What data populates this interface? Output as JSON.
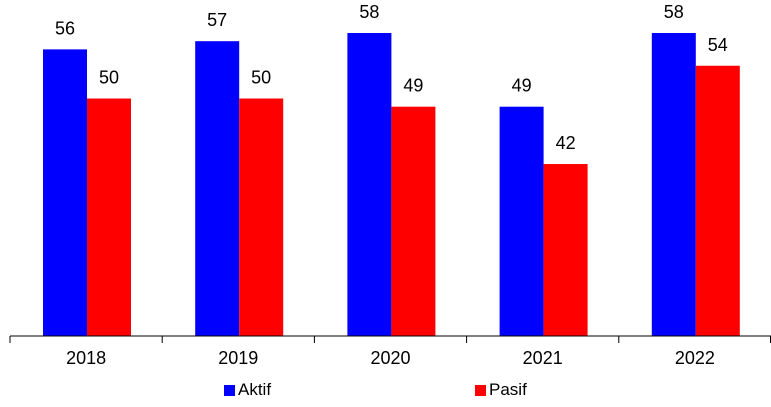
{
  "chart_data": {
    "type": "bar",
    "categories": [
      "2018",
      "2019",
      "2020",
      "2021",
      "2022"
    ],
    "series": [
      {
        "name": "Aktif",
        "values": [
          56,
          57,
          58,
          49,
          58
        ],
        "color": "#0000FF"
      },
      {
        "name": "Pasif",
        "values": [
          50,
          50,
          49,
          42,
          54
        ],
        "color": "#FF0000"
      }
    ],
    "title": "",
    "xlabel": "",
    "ylabel": "",
    "ylim": [
      21,
      58
    ],
    "grid": false,
    "legend_position": "bottom",
    "data_labels": true
  }
}
